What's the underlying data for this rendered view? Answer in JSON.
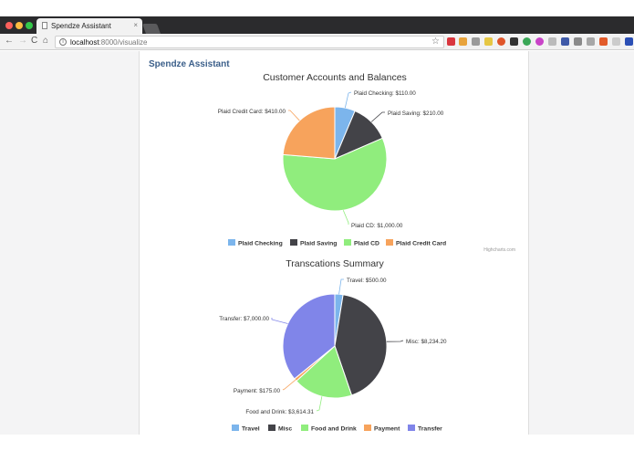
{
  "browser": {
    "tab_title": "Spendze Assistant",
    "tab_close": "×",
    "url_host": "localhost",
    "url_path": ":8000/visualize",
    "info_symbol": "i",
    "star_symbol": "☆",
    "nav": {
      "back": "←",
      "forward": "→",
      "reload": "C",
      "home": "⌂"
    }
  },
  "page": {
    "brand": "Spendze Assistant",
    "credits": "Highcharts.com"
  },
  "chart_data": [
    {
      "type": "pie",
      "title": "Customer Accounts and Balances",
      "series": [
        {
          "name": "Plaid Checking",
          "value": 110.0,
          "label": "Plaid Checking: $110.00",
          "color": "#7cb5ec"
        },
        {
          "name": "Plaid Saving",
          "value": 210.0,
          "label": "Plaid Saving: $210.00",
          "color": "#434348"
        },
        {
          "name": "Plaid CD",
          "value": 1000.0,
          "label": "Plaid CD: $1,000.00",
          "color": "#90ed7d"
        },
        {
          "name": "Plaid Credit Card",
          "value": 410.0,
          "label": "Plaid Credit Card: $410.00",
          "color": "#f7a35c"
        }
      ],
      "legend_position": "bottom"
    },
    {
      "type": "pie",
      "title": "Transcations Summary",
      "series": [
        {
          "name": "Travel",
          "value": 500.0,
          "label": "Travel: $500.00",
          "color": "#7cb5ec"
        },
        {
          "name": "Misc",
          "value": 8234.2,
          "label": "Misc: $8,234.20",
          "color": "#434348"
        },
        {
          "name": "Food and Drink",
          "value": 3614.31,
          "label": "Food and Drink: $3,614.31",
          "color": "#90ed7d"
        },
        {
          "name": "Payment",
          "value": 175.0,
          "label": "Payment: $175.00",
          "color": "#f7a35c"
        },
        {
          "name": "Transfer",
          "value": 7000.0,
          "label": "Transfer: $7,000.00",
          "color": "#8085e9"
        }
      ],
      "legend_position": "bottom"
    }
  ]
}
